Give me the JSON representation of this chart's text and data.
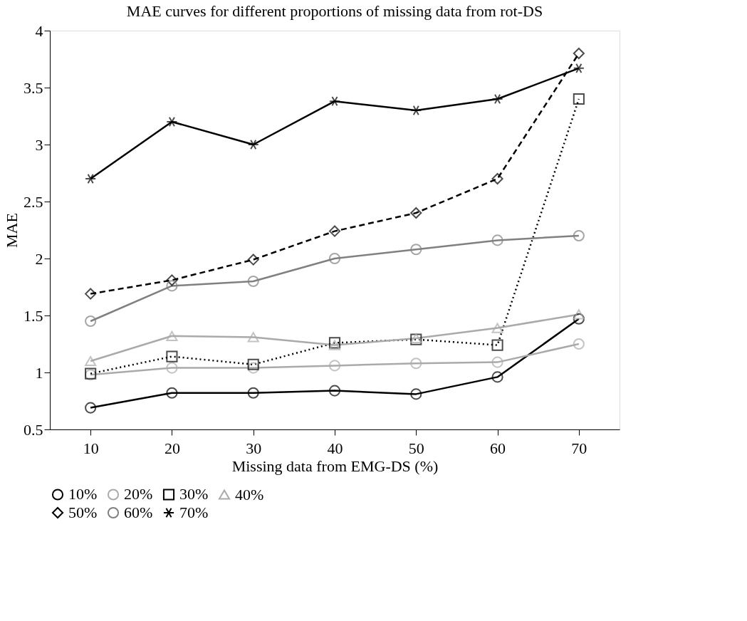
{
  "chart_data": {
    "type": "line",
    "title": "MAE curves for different proportions of missing data from rot-DS",
    "xlabel": "Missing data from EMG-DS (%)",
    "ylabel": "MAE",
    "categories": [
      "10",
      "20",
      "30",
      "40",
      "50",
      "60",
      "70"
    ],
    "ylim": [
      0.5,
      4
    ],
    "yticks": [
      0.5,
      1,
      1.5,
      2,
      2.5,
      3,
      3.5,
      4
    ],
    "grid": false,
    "legend": "bottom",
    "series": [
      {
        "name": "10%",
        "color": "#000000",
        "marker": "circle",
        "line_style": "solid",
        "values": [
          0.69,
          0.82,
          0.82,
          0.84,
          0.81,
          0.96,
          1.47
        ]
      },
      {
        "name": "20%",
        "color": "#aaaaaa",
        "marker": "circle",
        "line_style": "solid",
        "values": [
          0.98,
          1.04,
          1.04,
          1.06,
          1.08,
          1.09,
          1.25
        ]
      },
      {
        "name": "30%",
        "color": "#000000",
        "marker": "square",
        "line_style": "dotted",
        "values": [
          0.99,
          1.14,
          1.07,
          1.26,
          1.29,
          1.24,
          3.4
        ]
      },
      {
        "name": "40%",
        "color": "#aaaaaa",
        "marker": "triangle",
        "line_style": "solid",
        "values": [
          1.1,
          1.32,
          1.31,
          1.24,
          1.3,
          1.39,
          1.51
        ]
      },
      {
        "name": "50%",
        "color": "#000000",
        "marker": "diamond",
        "line_style": "dashed",
        "values": [
          1.69,
          1.81,
          1.99,
          2.24,
          2.4,
          2.7,
          3.8
        ]
      },
      {
        "name": "60%",
        "color": "#808080",
        "marker": "circle",
        "line_style": "solid",
        "values": [
          1.45,
          1.76,
          1.8,
          2.0,
          2.08,
          2.16,
          2.2
        ]
      },
      {
        "name": "70%",
        "color": "#000000",
        "marker": "cross",
        "line_style": "solid",
        "values": [
          2.7,
          3.2,
          3.0,
          3.38,
          3.3,
          3.4,
          3.67
        ]
      }
    ]
  }
}
